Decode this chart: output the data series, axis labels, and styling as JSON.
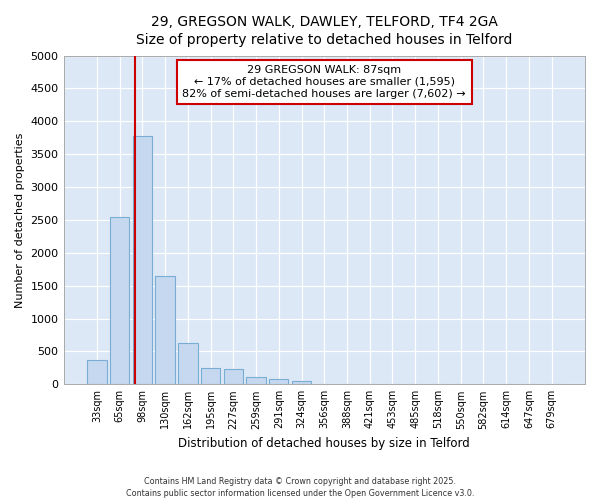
{
  "title_line1": "29, GREGSON WALK, DAWLEY, TELFORD, TF4 2GA",
  "title_line2": "Size of property relative to detached houses in Telford",
  "xlabel": "Distribution of detached houses by size in Telford",
  "ylabel": "Number of detached properties",
  "categories": [
    "33sqm",
    "65sqm",
    "98sqm",
    "130sqm",
    "162sqm",
    "195sqm",
    "227sqm",
    "259sqm",
    "291sqm",
    "324sqm",
    "356sqm",
    "388sqm",
    "421sqm",
    "453sqm",
    "485sqm",
    "518sqm",
    "550sqm",
    "582sqm",
    "614sqm",
    "647sqm",
    "679sqm"
  ],
  "values": [
    375,
    2550,
    3780,
    1650,
    625,
    250,
    230,
    110,
    75,
    50,
    0,
    0,
    0,
    0,
    0,
    0,
    0,
    0,
    0,
    0,
    0
  ],
  "bar_color": "#c5d8f0",
  "bar_edge_color": "#7aadd4",
  "vline_color": "#cc0000",
  "annotation_text": "29 GREGSON WALK: 87sqm\n← 17% of detached houses are smaller (1,595)\n82% of semi-detached houses are larger (7,602) →",
  "annotation_box_color": "#cc0000",
  "ylim": [
    0,
    5000
  ],
  "yticks": [
    0,
    500,
    1000,
    1500,
    2000,
    2500,
    3000,
    3500,
    4000,
    4500,
    5000
  ],
  "background_color": "#dce8f5",
  "grid_color": "#ffffff",
  "fig_background": "#ffffff",
  "footer_line1": "Contains HM Land Registry data © Crown copyright and database right 2025.",
  "footer_line2": "Contains public sector information licensed under the Open Government Licence v3.0."
}
